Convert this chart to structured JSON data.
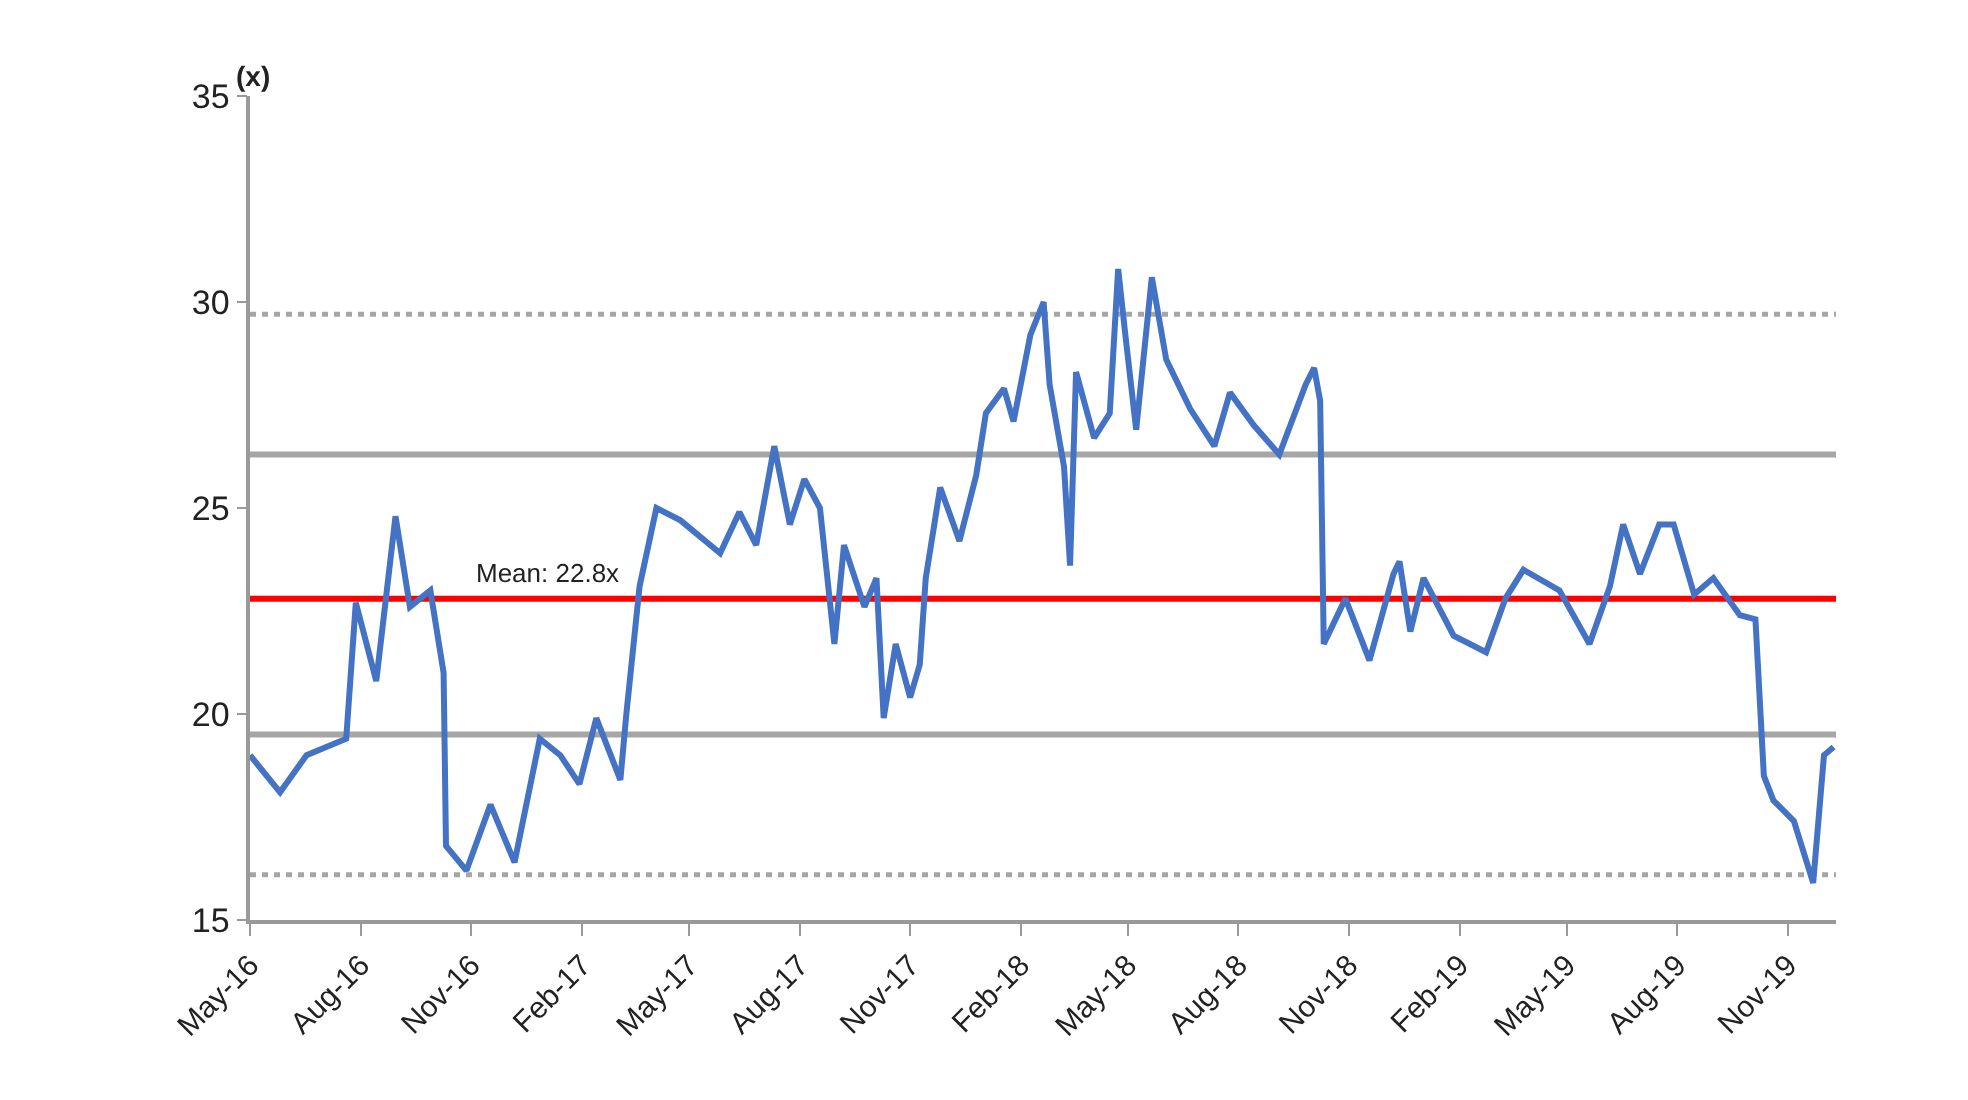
{
  "chart_data": {
    "type": "line",
    "ylabel": "(x)",
    "x": [
      "2016-05-01",
      "2016-05-26",
      "2016-06-17",
      "2016-07-20",
      "2016-07-28",
      "2016-08-14",
      "2016-08-30",
      "2016-09-11",
      "2016-09-28",
      "2016-10-09",
      "2016-10-11",
      "2016-10-28",
      "2016-11-17",
      "2016-12-07",
      "2016-12-28",
      "2017-01-14",
      "2017-01-30",
      "2017-02-13",
      "2017-03-05",
      "2017-03-10",
      "2017-03-21",
      "2017-04-04",
      "2017-04-24",
      "2017-05-27",
      "2017-06-12",
      "2017-06-26",
      "2017-07-11",
      "2017-07-24",
      "2017-08-05",
      "2017-08-18",
      "2017-08-30",
      "2017-09-07",
      "2017-09-24",
      "2017-10-04",
      "2017-10-10",
      "2017-10-20",
      "2017-11-01",
      "2017-11-09",
      "2017-11-14",
      "2017-11-26",
      "2017-12-12",
      "2017-12-26",
      "2018-01-03",
      "2018-01-18",
      "2018-01-26",
      "2018-02-09",
      "2018-02-20",
      "2018-02-25",
      "2018-03-09",
      "2018-03-14",
      "2018-03-19",
      "2018-04-03",
      "2018-04-16",
      "2018-04-23",
      "2018-04-29",
      "2018-05-08",
      "2018-05-21",
      "2018-06-02",
      "2018-06-22",
      "2018-07-12",
      "2018-07-25",
      "2018-08-14",
      "2018-09-04",
      "2018-09-26",
      "2018-10-03",
      "2018-10-08",
      "2018-10-11",
      "2018-10-29",
      "2018-11-18",
      "2018-12-08",
      "2018-12-13",
      "2018-12-22",
      "2019-01-02",
      "2019-01-27",
      "2019-02-23",
      "2019-03-11",
      "2019-03-26",
      "2019-04-25",
      "2019-05-20",
      "2019-06-06",
      "2019-06-17",
      "2019-07-01",
      "2019-07-17",
      "2019-07-29",
      "2019-08-15",
      "2019-08-31",
      "2019-09-22",
      "2019-10-05",
      "2019-10-12",
      "2019-10-20",
      "2019-11-06",
      "2019-11-22",
      "2019-12-01",
      "2019-12-09"
    ],
    "series": [
      {
        "color": "#4472c4",
        "values": [
          19.0,
          18.1,
          19.0,
          19.4,
          22.7,
          20.8,
          24.8,
          22.6,
          23.0,
          21.0,
          16.8,
          16.2,
          17.8,
          16.4,
          19.4,
          19.0,
          18.3,
          19.9,
          18.4,
          20.0,
          23.1,
          25.0,
          24.7,
          23.9,
          24.9,
          24.1,
          26.5,
          24.6,
          25.7,
          25.0,
          21.7,
          24.1,
          22.6,
          23.3,
          19.9,
          21.7,
          20.4,
          21.2,
          23.3,
          25.5,
          24.2,
          25.8,
          27.3,
          27.9,
          27.1,
          29.2,
          30.0,
          28.0,
          26.0,
          23.6,
          28.3,
          26.7,
          27.3,
          30.8,
          29.2,
          26.9,
          30.6,
          28.6,
          27.4,
          26.5,
          27.8,
          27.0,
          26.3,
          28.0,
          28.4,
          27.6,
          21.7,
          22.8,
          21.3,
          23.4,
          23.7,
          22.0,
          23.3,
          21.9,
          21.5,
          22.8,
          23.5,
          23.0,
          21.7,
          23.1,
          24.6,
          23.4,
          24.6,
          24.6,
          22.9,
          23.3,
          22.4,
          22.3,
          18.5,
          17.9,
          17.4,
          15.9,
          19.0,
          19.2
        ]
      }
    ],
    "xlim": [
      "2016-05-01",
      "2019-12-11"
    ],
    "xticks": [
      {
        "value": "2016-05-01",
        "label": "May-16"
      },
      {
        "value": "2016-08-01",
        "label": "Aug-16"
      },
      {
        "value": "2016-11-01",
        "label": "Nov-16"
      },
      {
        "value": "2017-02-01",
        "label": "Feb-17"
      },
      {
        "value": "2017-05-01",
        "label": "May-17"
      },
      {
        "value": "2017-08-01",
        "label": "Aug-17"
      },
      {
        "value": "2017-11-01",
        "label": "Nov-17"
      },
      {
        "value": "2018-02-01",
        "label": "Feb-18"
      },
      {
        "value": "2018-05-01",
        "label": "May-18"
      },
      {
        "value": "2018-08-01",
        "label": "Aug-18"
      },
      {
        "value": "2018-11-01",
        "label": "Nov-18"
      },
      {
        "value": "2019-02-01",
        "label": "Feb-19"
      },
      {
        "value": "2019-05-01",
        "label": "May-19"
      },
      {
        "value": "2019-08-01",
        "label": "Aug-19"
      },
      {
        "value": "2019-11-01",
        "label": "Nov-19"
      }
    ],
    "ylim": [
      15,
      35
    ],
    "yticks": [
      15,
      20,
      25,
      30,
      35
    ],
    "grid": false,
    "marker": "none",
    "line_style": "solid",
    "ref_lines": [
      {
        "axis": "y",
        "value": 22.8,
        "label": "Mean: 22.8x",
        "color": "#ff0000",
        "line_style": "solid"
      },
      {
        "axis": "y",
        "value": 26.3,
        "label": null,
        "color": "#a6a6a6",
        "line_style": "solid"
      },
      {
        "axis": "y",
        "value": 19.5,
        "label": null,
        "color": "#a6a6a6",
        "line_style": "solid"
      },
      {
        "axis": "y",
        "value": 29.7,
        "label": null,
        "color": "#a6a6a6",
        "line_style": "dotted"
      },
      {
        "axis": "y",
        "value": 16.1,
        "label": null,
        "color": "#a6a6a6",
        "line_style": "dotted"
      }
    ]
  }
}
